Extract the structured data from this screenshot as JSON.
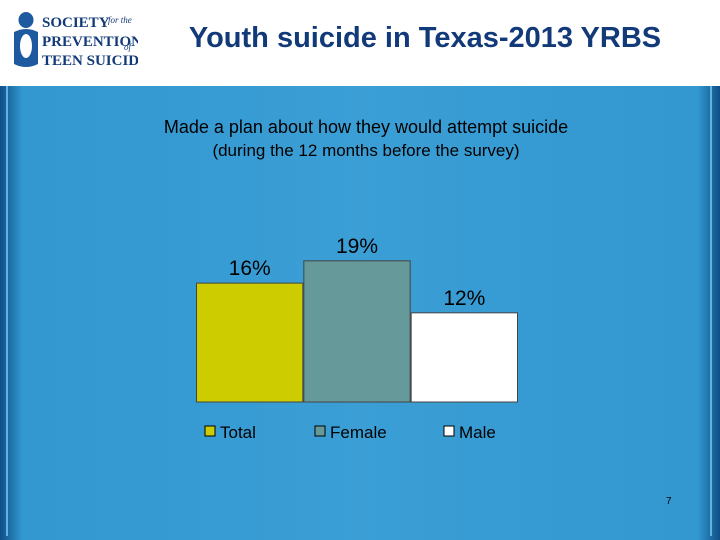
{
  "slide": {
    "title": "Youth suicide in Texas-2013 YRBS",
    "page_number": "7"
  },
  "logo": {
    "line1": "SOCIETY",
    "line1_small": "for the",
    "line2": "PREVENTION",
    "line2_small": "of",
    "line3": "TEEN SUICIDE"
  },
  "chart_data": {
    "type": "bar",
    "title": "Made a plan about how they would attempt suicide",
    "subtitle": "(during the 12 months before the survey)",
    "categories": [
      "Total",
      "Female",
      "Male"
    ],
    "values": [
      16,
      19,
      12
    ],
    "value_labels": [
      "16%",
      "19%",
      "12%"
    ],
    "colors": [
      "#cccc00",
      "#669999",
      "#ffffff"
    ],
    "ylim": [
      0,
      20
    ],
    "grid": false,
    "legend": "bottom",
    "legend_entries": [
      "Total",
      "Female",
      "Male"
    ]
  },
  "colors": {
    "title": "#123a78",
    "panel": "#3b9fd6",
    "panel_edge": "#0e4f86"
  }
}
